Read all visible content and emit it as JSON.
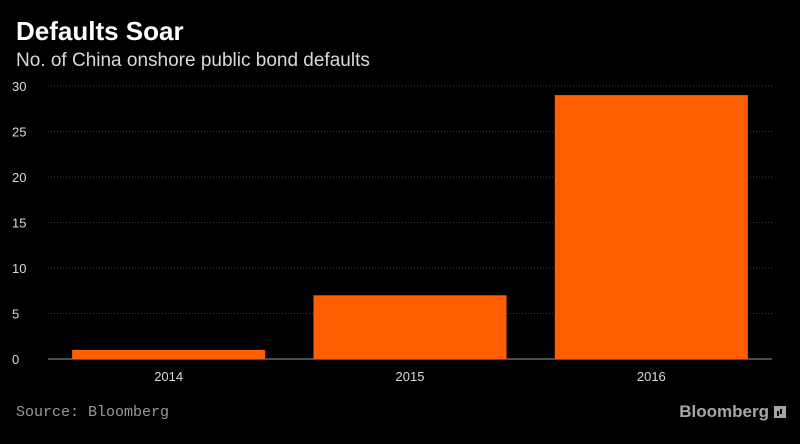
{
  "chart_data": {
    "type": "bar",
    "title": "Defaults Soar",
    "subtitle": "No. of China onshore public bond defaults",
    "categories": [
      "2014",
      "2015",
      "2016"
    ],
    "values": [
      1,
      7,
      29
    ],
    "xlabel": "",
    "ylabel": "",
    "ylim": [
      0,
      30
    ],
    "yticks": [
      0,
      5,
      10,
      15,
      20,
      25,
      30
    ],
    "grid": true,
    "legend": "none",
    "bar_color": "#ff5f00",
    "grid_color": "#3a3a3a",
    "axis_label_color": "#d9d9d9"
  },
  "footer": {
    "source": "Source: Bloomberg",
    "brand": "Bloomberg",
    "brand_icon": "bloomberg-chart-icon"
  }
}
